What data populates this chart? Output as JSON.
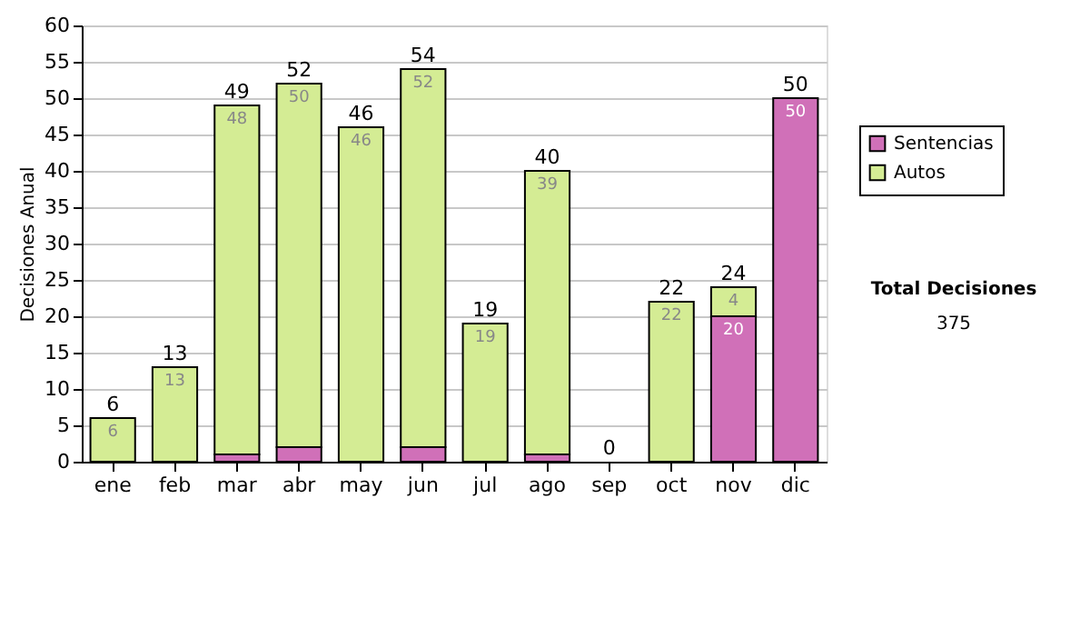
{
  "chart_data": {
    "type": "bar",
    "stacked": true,
    "ylabel": "Decisiones Anual",
    "categories": [
      "ene",
      "feb",
      "mar",
      "abr",
      "may",
      "jun",
      "jul",
      "ago",
      "sep",
      "oct",
      "nov",
      "dic"
    ],
    "series": [
      {
        "name": "Sentencias",
        "color": "#d070b8",
        "values": [
          0,
          0,
          1,
          2,
          0,
          2,
          0,
          1,
          0,
          0,
          20,
          50
        ],
        "value_labels": [
          null,
          null,
          null,
          null,
          null,
          null,
          null,
          null,
          null,
          null,
          "20",
          "50"
        ]
      },
      {
        "name": "Autos",
        "color": "#d4ec94",
        "values": [
          6,
          13,
          48,
          50,
          46,
          52,
          19,
          39,
          0,
          22,
          4,
          0
        ],
        "value_labels": [
          "6",
          "13",
          "48",
          "50",
          "46",
          "52",
          "19",
          "39",
          null,
          "22",
          "4",
          null
        ]
      }
    ],
    "totals": [
      "6",
      "13",
      "49",
      "52",
      "46",
      "54",
      "19",
      "40",
      "0",
      "22",
      "24",
      "50"
    ],
    "ylim": [
      0,
      60
    ],
    "yticks": [
      0,
      5,
      10,
      15,
      20,
      25,
      30,
      35,
      40,
      45,
      50,
      55,
      60
    ],
    "grid": "y",
    "legend": "right",
    "annotations": [
      "Total Decisiones",
      "375"
    ]
  }
}
